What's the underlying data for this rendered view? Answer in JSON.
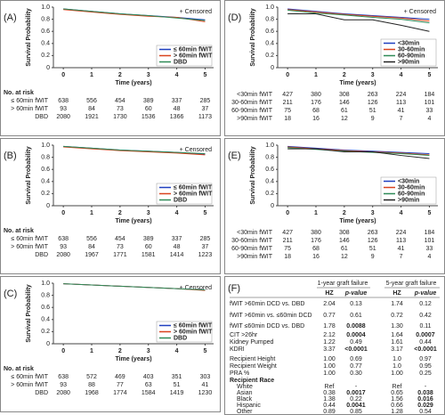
{
  "chart_data": [
    {
      "type": "line",
      "panel_label": "(A)",
      "ylabel": "Survival Probability",
      "xlabel": "Time (years)",
      "censored_label": "+ Censored",
      "x": [
        0,
        1,
        2,
        3,
        4,
        5
      ],
      "xlim": [
        -0.35,
        5.3
      ],
      "xticks": [
        0,
        1,
        2,
        3,
        4,
        5
      ],
      "ylim": [
        0,
        1
      ],
      "yticks": [
        0,
        0.2,
        0.4,
        0.6,
        0.8,
        {
          "value": 1,
          "label": "1.0"
        }
      ],
      "legend": "bottom-right",
      "series": [
        {
          "name": "≤ 60min fWIT",
          "color": "#1f3fbf",
          "values": [
            0.97,
            0.93,
            0.89,
            0.86,
            0.83,
            0.79
          ]
        },
        {
          "name": "> 60min fWIT",
          "color": "#d9431e",
          "values": [
            0.96,
            0.92,
            0.88,
            0.85,
            0.83,
            0.76
          ]
        },
        {
          "name": "DBD",
          "color": "#2e8b57",
          "values": [
            0.97,
            0.93,
            0.89,
            0.86,
            0.82,
            0.78
          ]
        }
      ],
      "risk_title": "No. at risk",
      "risk_rows": [
        {
          "label": "≤ 60min fWIT",
          "values": [
            638,
            556,
            454,
            389,
            337,
            285
          ]
        },
        {
          "label": "> 60min fWIT",
          "values": [
            93,
            84,
            73,
            60,
            48,
            37
          ]
        },
        {
          "label": "DBD",
          "values": [
            2080,
            1921,
            1730,
            1536,
            1366,
            1173
          ]
        }
      ]
    },
    {
      "type": "line",
      "panel_label": "(B)",
      "ylabel": "Survival Probability",
      "xlabel": "Time (years)",
      "censored_label": "+ Censored",
      "x": [
        0,
        1,
        2,
        3,
        4,
        5
      ],
      "xlim": [
        -0.35,
        5.3
      ],
      "xticks": [
        0,
        1,
        2,
        3,
        4,
        5
      ],
      "ylim": [
        0,
        1
      ],
      "yticks": [
        0,
        0.2,
        0.4,
        0.6,
        0.8,
        {
          "value": 1,
          "label": "1.0"
        }
      ],
      "legend": "bottom-right",
      "series": [
        {
          "name": "≤ 60min fWIT",
          "color": "#1f3fbf",
          "values": [
            0.98,
            0.95,
            0.92,
            0.9,
            0.88,
            0.85
          ]
        },
        {
          "name": "> 60min fWIT",
          "color": "#d9431e",
          "values": [
            0.97,
            0.94,
            0.91,
            0.89,
            0.87,
            0.84
          ]
        },
        {
          "name": "DBD",
          "color": "#2e8b57",
          "values": [
            0.98,
            0.95,
            0.92,
            0.9,
            0.88,
            0.86
          ]
        }
      ],
      "risk_title": "No. at risk",
      "risk_rows": [
        {
          "label": "≤ 60min fWIT",
          "values": [
            638,
            556,
            454,
            389,
            337,
            285
          ]
        },
        {
          "label": "> 60min fWIT",
          "values": [
            93,
            84,
            73,
            60,
            48,
            37
          ]
        },
        {
          "label": "DBD",
          "values": [
            2080,
            1967,
            1771,
            1581,
            1414,
            1223
          ]
        }
      ]
    },
    {
      "type": "line",
      "panel_label": "(C)",
      "ylabel": "Survival Probability",
      "xlabel": "Time (years)",
      "censored_label": "+ Censored",
      "x": [
        0,
        1,
        2,
        3,
        4,
        5
      ],
      "xlim": [
        -0.35,
        5.3
      ],
      "xticks": [
        0,
        1,
        2,
        3,
        4,
        5
      ],
      "ylim": [
        0,
        1
      ],
      "yticks": [
        0,
        0.2,
        0.4,
        0.6,
        0.8,
        {
          "value": 1,
          "label": "1.0"
        }
      ],
      "legend": "bottom-right",
      "series": [
        {
          "name": "≤ 60min fWIT",
          "color": "#1f3fbf",
          "values": [
            0.99,
            0.97,
            0.95,
            0.93,
            0.91,
            0.89
          ]
        },
        {
          "name": "> 60min fWIT",
          "color": "#d9431e",
          "values": [
            0.99,
            0.97,
            0.95,
            0.93,
            0.91,
            0.88
          ]
        },
        {
          "name": "DBD",
          "color": "#2e8b57",
          "values": [
            0.99,
            0.97,
            0.95,
            0.93,
            0.91,
            0.89
          ]
        }
      ],
      "risk_title": "No. at risk",
      "risk_rows": [
        {
          "label": "≤ 60min fWIT",
          "values": [
            638,
            572,
            469,
            403,
            351,
            303
          ]
        },
        {
          "label": "> 60min fWIT",
          "values": [
            93,
            88,
            77,
            63,
            51,
            41
          ]
        },
        {
          "label": "DBD",
          "values": [
            2080,
            1968,
            1774,
            1584,
            1419,
            1230
          ]
        }
      ]
    },
    {
      "type": "line",
      "panel_label": "(D)",
      "ylabel": "Survival Probability",
      "xlabel": "Time (years)",
      "censored_label": "+ Censored",
      "x": [
        0,
        1,
        2,
        3,
        4,
        5
      ],
      "xlim": [
        -0.35,
        5.3
      ],
      "xticks": [
        0,
        1,
        2,
        3,
        4,
        5
      ],
      "ylim": [
        0,
        1
      ],
      "yticks": [
        0,
        0.2,
        0.4,
        0.6,
        0.8,
        {
          "value": 1,
          "label": "1.0"
        }
      ],
      "legend": "bottom-right",
      "series": [
        {
          "name": "<30min",
          "color": "#1f3fbf",
          "values": [
            0.97,
            0.93,
            0.89,
            0.86,
            0.83,
            0.8
          ]
        },
        {
          "name": "30-60min",
          "color": "#d9431e",
          "values": [
            0.96,
            0.92,
            0.88,
            0.85,
            0.82,
            0.77
          ]
        },
        {
          "name": "60-90min",
          "color": "#2e8b57",
          "values": [
            0.95,
            0.9,
            0.87,
            0.83,
            0.8,
            0.74
          ]
        },
        {
          "name": ">90min",
          "color": "#222222",
          "values": [
            0.89,
            0.89,
            0.79,
            0.79,
            0.7,
            0.6
          ]
        }
      ],
      "risk_rows": [
        {
          "label": "<30min fWIT",
          "values": [
            427,
            380,
            308,
            263,
            224,
            184
          ]
        },
        {
          "label": "30-60min fWIT",
          "values": [
            211,
            176,
            146,
            126,
            113,
            101
          ]
        },
        {
          "label": "60-90min fWIT",
          "values": [
            75,
            68,
            61,
            51,
            41,
            33
          ]
        },
        {
          "label": ">90min fWIT",
          "values": [
            18,
            16,
            12,
            9,
            7,
            4
          ]
        }
      ]
    },
    {
      "type": "line",
      "panel_label": "(E)",
      "ylabel": "Survival Probability",
      "xlabel": "Time (years)",
      "x": [
        0,
        1,
        2,
        3,
        4,
        5
      ],
      "xlim": [
        -0.35,
        5.3
      ],
      "xticks": [
        0,
        1,
        2,
        3,
        4,
        5
      ],
      "ylim": [
        0,
        1
      ],
      "yticks": [
        0,
        0.2,
        0.4,
        0.6,
        0.8,
        {
          "value": 1,
          "label": "1.0"
        }
      ],
      "legend": "bottom-right",
      "series": [
        {
          "name": "<30min",
          "color": "#1f3fbf",
          "values": [
            0.98,
            0.95,
            0.92,
            0.9,
            0.88,
            0.86
          ]
        },
        {
          "name": "30-60min",
          "color": "#d9431e",
          "values": [
            0.97,
            0.94,
            0.91,
            0.89,
            0.87,
            0.84
          ]
        },
        {
          "name": "60-90min",
          "color": "#2e8b57",
          "values": [
            0.96,
            0.93,
            0.9,
            0.88,
            0.86,
            0.83
          ]
        },
        {
          "name": ">90min",
          "color": "#222222",
          "values": [
            0.94,
            0.94,
            0.89,
            0.89,
            0.83,
            0.78
          ]
        }
      ],
      "risk_rows": [
        {
          "label": "<30min fWIT",
          "values": [
            427,
            380,
            308,
            263,
            224,
            184
          ]
        },
        {
          "label": "30-60min fWIT",
          "values": [
            211,
            176,
            146,
            126,
            113,
            101
          ]
        },
        {
          "label": "60-90min fWIT",
          "values": [
            75,
            68,
            61,
            51,
            41,
            33
          ]
        },
        {
          "label": ">90min fWIT",
          "values": [
            18,
            16,
            12,
            9,
            7,
            4
          ]
        }
      ]
    }
  ],
  "table": {
    "panel_label": "(F)",
    "groups": [
      "1-year graft failure",
      "5-year graft failure"
    ],
    "columns": [
      "HZ",
      "p-value",
      "HZ",
      "p-value"
    ],
    "rows": [
      {
        "label": "fWIT >60min DCD vs. DBD",
        "cells": [
          "2.04",
          "0.13",
          "1.74",
          "0.12"
        ],
        "bold": []
      },
      {
        "label": "fWIT >60min vs. ≤60min DCD",
        "cells": [
          "0.77",
          "0.61",
          "0.72",
          "0.42"
        ],
        "bold": []
      },
      {
        "label": "fWIT ≤60min DCD vs. DBD",
        "cells": [
          "1.78",
          "0.0088",
          "1.30",
          "0.11"
        ],
        "bold": [
          1
        ]
      },
      {
        "label": "CIT >26hr",
        "cells": [
          "2.12",
          "0.0004",
          "1.64",
          "0.0007"
        ],
        "bold": [
          1,
          3
        ]
      },
      {
        "label": "Kidney Pumped",
        "cells": [
          "1.22",
          "0.49",
          "1.61",
          "0.44"
        ],
        "bold": []
      },
      {
        "label": "KDRI",
        "cells": [
          "3.37",
          "<0.0001",
          "3.17",
          "<0.0001"
        ],
        "bold": [
          1,
          3
        ]
      },
      {
        "label": "Recipient Height",
        "cells": [
          "1.00",
          "0.69",
          "1.0",
          "0.97"
        ],
        "bold": []
      },
      {
        "label": "Recipient Weight",
        "cells": [
          "1.00",
          "0.77",
          "1.0",
          "0.95"
        ],
        "bold": []
      },
      {
        "label": "PRA %",
        "cells": [
          "1.00",
          "0.30",
          "1.00",
          "0.25"
        ],
        "bold": []
      },
      {
        "label": "Recipient Race",
        "cells": [],
        "bold": []
      },
      {
        "label": "White",
        "cells": [
          "Ref",
          "-",
          "Ref",
          "-"
        ],
        "bold": []
      },
      {
        "label": "Asian",
        "cells": [
          "0.38",
          "0.0017",
          "0.65",
          "0.038"
        ],
        "bold": [
          1,
          3
        ]
      },
      {
        "label": "Black",
        "cells": [
          "1.38",
          "0.22",
          "1.56",
          "0.016"
        ],
        "bold": [
          3
        ]
      },
      {
        "label": "Hispanic",
        "cells": [
          "0.44",
          "0.0041",
          "0.66",
          "0.029"
        ],
        "bold": [
          1,
          3
        ]
      },
      {
        "label": "Other",
        "cells": [
          "0.89",
          "0.85",
          "1.28",
          "0.54"
        ],
        "bold": []
      }
    ]
  }
}
